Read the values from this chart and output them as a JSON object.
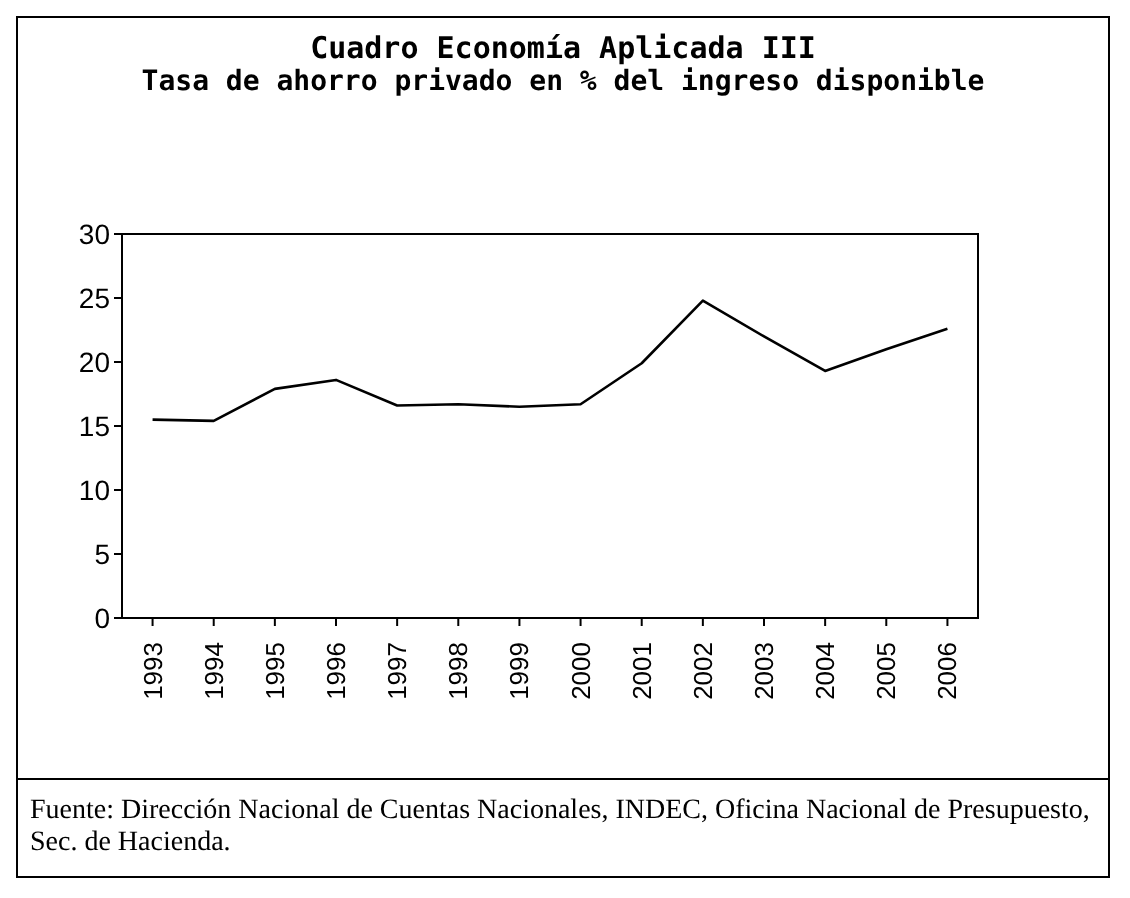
{
  "chart_data": {
    "type": "line",
    "title": "Cuadro Economía Aplicada III",
    "subtitle": "Tasa de ahorro privado en % del ingreso disponible",
    "categories": [
      "1993",
      "1994",
      "1995",
      "1996",
      "1997",
      "1998",
      "1999",
      "2000",
      "2001",
      "2002",
      "2003",
      "2004",
      "2005",
      "2006"
    ],
    "values": [
      15.5,
      15.4,
      17.9,
      18.6,
      16.6,
      16.7,
      16.5,
      16.7,
      19.9,
      24.8,
      22.0,
      19.3,
      21.0,
      22.6
    ],
    "color": "#000000",
    "ylim": [
      0,
      30
    ],
    "yticks": [
      0,
      5,
      10,
      15,
      20,
      25,
      30
    ],
    "grid": false,
    "marker": "none",
    "line_style": "solid",
    "annotations": [
      "Fuente: Dirección Nacional de Cuentas Nacionales, INDEC, Oficina Nacional de Presupuesto, Sec. de Hacienda."
    ]
  }
}
